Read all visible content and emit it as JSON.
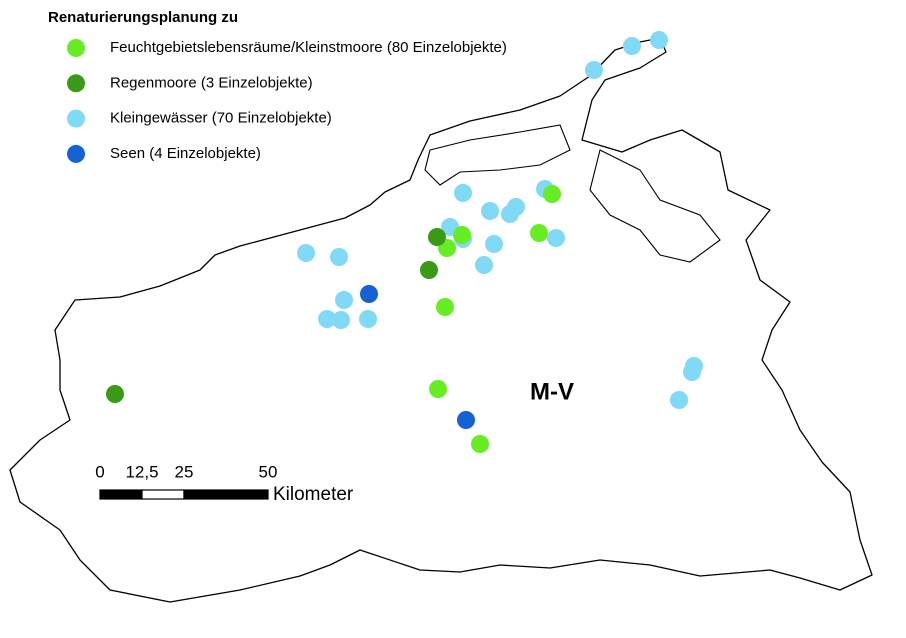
{
  "legend": {
    "title": "Renaturierungsplanung zu",
    "items": [
      {
        "label": "Feuchtgebietslebensräume/Kleinstmoore (80 Einzelobjekte)",
        "color": "#66ee22"
      },
      {
        "label": "Regenmoore (3 Einzelobjekte)",
        "color": "#3a9a16"
      },
      {
        "label": "Kleingewässer  (70 Einzelobjekte)",
        "color": "#80daf6"
      },
      {
        "label": "Seen (4 Einzelobjekte)",
        "color": "#1462d6"
      }
    ]
  },
  "scale_bar": {
    "ticks": [
      0,
      {
        "value": 12.5,
        "label": "12,5"
      },
      25,
      50
    ],
    "unit": "Kilometer"
  },
  "region_label": "M-V"
}
